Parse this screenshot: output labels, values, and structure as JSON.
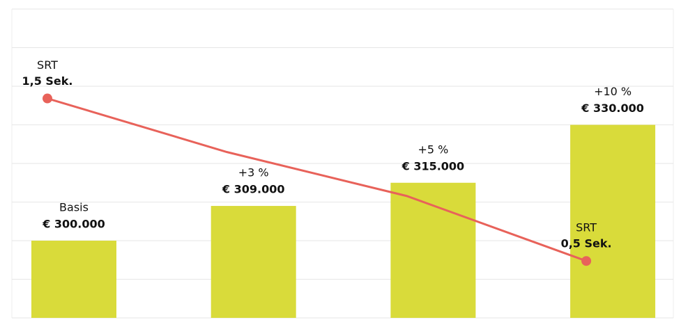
{
  "chart_data": {
    "type": "bar",
    "categories": [
      null,
      null,
      null,
      null
    ],
    "ylim": [
      280000,
      360000
    ],
    "yticks": [
      280000,
      290000,
      300000,
      310000,
      320000,
      330000,
      340000,
      350000,
      360000
    ],
    "y2lim": [
      0.15,
      2.05
    ],
    "grid": true,
    "series": [
      {
        "type": "bar",
        "color": "#d9db3a",
        "values": [
          300000,
          309000,
          315000,
          330000
        ],
        "value_labels": [
          "€ 300.000",
          "€ 309.000",
          "€ 315.000",
          "€ 330.000"
        ],
        "annotations": [
          "Basis",
          "+3 %",
          "+5 %",
          "+10 %"
        ]
      },
      {
        "type": "line",
        "name": "SRT",
        "axis": "y2",
        "color": "#e8625a",
        "values": [
          1.5,
          1.17,
          0.9,
          0.5
        ],
        "value_labels": [
          "1,5 Sek.",
          null,
          null,
          "0,5 Sek."
        ]
      }
    ]
  }
}
